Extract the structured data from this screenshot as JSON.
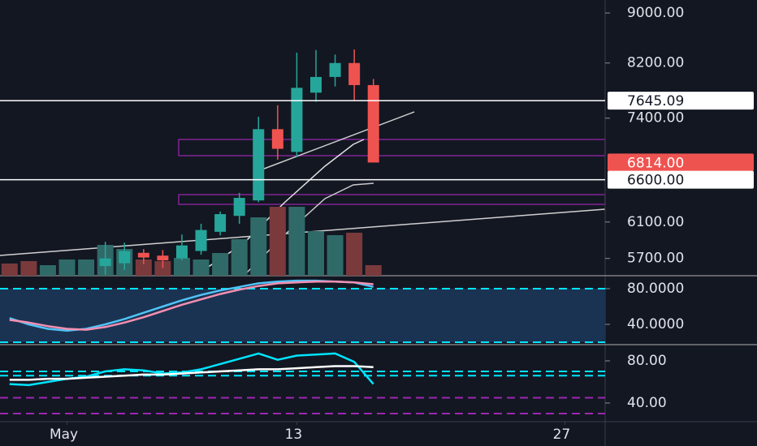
{
  "chart_data": [
    {
      "type": "candlestick",
      "xlim": [
        -2.5,
        29.1
      ],
      "xticks": [
        {
          "value": 1,
          "label": "May"
        },
        13,
        27
      ],
      "ylim": [
        5520,
        9220
      ],
      "log_scale": true,
      "yticks": [
        {
          "value": 9000,
          "label": "9000.00"
        },
        {
          "value": 8200,
          "label": "8200.00"
        },
        {
          "value": 7400,
          "label": "7400.00"
        },
        {
          "value": 6100,
          "label": "6100.00"
        },
        {
          "value": 5700,
          "label": "5700.00"
        }
      ],
      "x": [
        3,
        4,
        5,
        6,
        7,
        8,
        9,
        10,
        11,
        12,
        13,
        14,
        15,
        16,
        17
      ],
      "open": [
        5620,
        5650,
        5760,
        5730,
        5700,
        5780,
        5990,
        6170,
        6350,
        7250,
        6950,
        7760,
        7990,
        8200,
        7870
      ],
      "high": [
        5880,
        5870,
        5800,
        5790,
        5960,
        6080,
        6220,
        6440,
        7420,
        7580,
        8360,
        8400,
        8330,
        8410,
        7960
      ],
      "low": [
        5530,
        5580,
        5640,
        5600,
        5680,
        5740,
        5950,
        6080,
        6330,
        6850,
        6880,
        7630,
        7850,
        7640,
        6814
      ],
      "close": [
        5700,
        5780,
        5710,
        5680,
        5840,
        6010,
        6190,
        6380,
        7250,
        6990,
        7830,
        7990,
        8200,
        7870,
        6814
      ],
      "up_color": "#26a69a",
      "down_color": "#ef5350",
      "price_lines": [
        {
          "value": 7645.09,
          "label": "7645.09",
          "color": "#ffffff"
        },
        {
          "value": 6814,
          "label": "6814.00",
          "color": "#ef5350"
        },
        {
          "value": 6600,
          "label": "6600.00",
          "color": "#ffffff"
        }
      ],
      "volume": {
        "vlim": [
          0,
          100
        ],
        "x": [
          -2,
          -1,
          0,
          1,
          2,
          3,
          4,
          5,
          6,
          7,
          8,
          9,
          10,
          11,
          12,
          13,
          14,
          15,
          16,
          17
        ],
        "values": [
          15,
          18,
          13,
          20,
          20,
          38,
          33,
          20,
          18,
          22,
          20,
          28,
          45,
          72,
          85,
          85,
          55,
          50,
          53,
          13
        ],
        "colors": [
          "#7a3a3c",
          "#7a3a3c",
          "#2f6a68",
          "#2f6a68",
          "#2f6a68",
          "#2f6a68",
          "#2f6a68",
          "#7a3a3c",
          "#7a3a3c",
          "#2f6a68",
          "#2f6a68",
          "#2f6a68",
          "#2f6a68",
          "#2f6a68",
          "#7a3a3c",
          "#2f6a68",
          "#2f6a68",
          "#2f6a68",
          "#7a3a3c",
          "#7a3a3c"
        ]
      }
    },
    {
      "type": "line",
      "ylim": [
        17.3,
        94.5
      ],
      "yticks": [
        {
          "value": 80,
          "label": "80.0000"
        },
        {
          "value": 40,
          "label": "40.0000"
        }
      ],
      "band": [
        20,
        80
      ],
      "band_color": "#1b3352",
      "level_color": "#00e5ff",
      "x": [
        -2,
        -1,
        0,
        1,
        2,
        3,
        4,
        5,
        6,
        7,
        8,
        9,
        10,
        11,
        12,
        13,
        14,
        15,
        16,
        17
      ],
      "series": [
        {
          "color": "#4fc3f7",
          "values": [
            47,
            40,
            35,
            33,
            35,
            40,
            46,
            53,
            60,
            67,
            73,
            78,
            82,
            86,
            88,
            89,
            89,
            88,
            87,
            82
          ]
        },
        {
          "color": "#f48fb1",
          "values": [
            45,
            42,
            38,
            35,
            34,
            37,
            42,
            48,
            55,
            62,
            68,
            74,
            79,
            83,
            86,
            87,
            88,
            88,
            87,
            85
          ]
        }
      ]
    },
    {
      "type": "line",
      "ylim": [
        22.3,
        95.4
      ],
      "yticks": [
        {
          "value": 80,
          "label": "80.00"
        },
        {
          "value": 40,
          "label": "40.00"
        }
      ],
      "levels": [
        {
          "value": 70,
          "color": "#00e5ff"
        },
        {
          "value": 66,
          "color": "#00e5ff"
        },
        {
          "value": 45,
          "color": "#9c27b0"
        },
        {
          "value": 30,
          "color": "#9c27b0"
        }
      ],
      "x": [
        -2,
        -1,
        0,
        1,
        2,
        3,
        4,
        5,
        6,
        7,
        8,
        9,
        10,
        11,
        12,
        13,
        14,
        15,
        16,
        17
      ],
      "series": [
        {
          "color": "#00e5ff",
          "values": [
            58,
            57,
            60,
            63,
            65,
            70,
            72,
            71,
            68,
            69,
            72,
            77,
            82,
            87,
            81,
            85,
            86,
            87,
            79,
            58
          ]
        },
        {
          "color": "#ffffff",
          "values": [
            62,
            62,
            63,
            63,
            64,
            65,
            66,
            67,
            67,
            68,
            69,
            70,
            71,
            72,
            72,
            73,
            74,
            75,
            75,
            74
          ]
        }
      ]
    }
  ]
}
